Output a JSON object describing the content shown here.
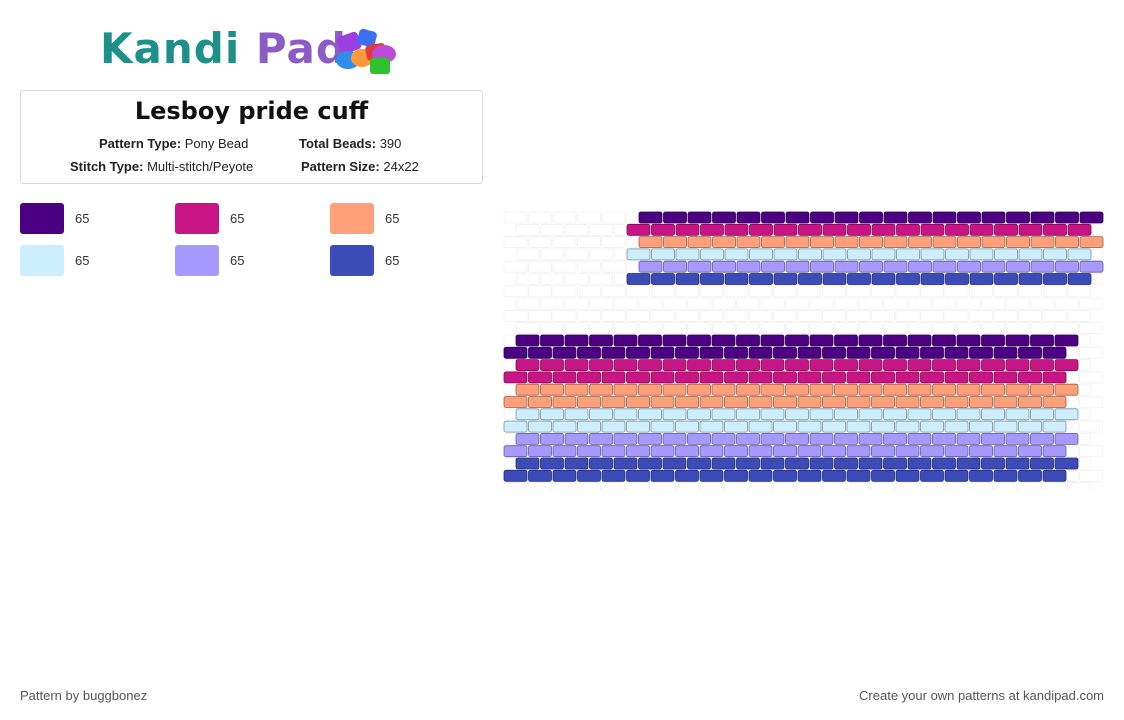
{
  "brand": {
    "logo_k": "Kandi",
    "logo_p": "Pad"
  },
  "pattern": {
    "title": "Lesboy pride cuff",
    "type_label": "Pattern Type:",
    "type_value": "Pony Bead",
    "total_label": "Total Beads:",
    "total_value": "390",
    "stitch_label": "Stitch Type:",
    "stitch_value": "Multi-stitch/Peyote",
    "size_label": "Pattern Size:",
    "size_value": "24x22"
  },
  "palette": [
    {
      "color": "#4b0082",
      "count": "65"
    },
    {
      "color": "#c71585",
      "count": "65"
    },
    {
      "color": "#ffa07a",
      "count": "65"
    },
    {
      "color": "#cceeff",
      "count": "65"
    },
    {
      "color": "#a899ff",
      "count": "65"
    },
    {
      "color": "#3b4bb8",
      "count": "65"
    }
  ],
  "footer": {
    "credit": "Pattern by buggbonez",
    "cta": "Create your own patterns at kandipad.com"
  }
}
